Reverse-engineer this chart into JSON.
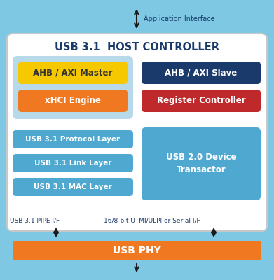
{
  "bg_outer": "#7ec8e3",
  "bg_inner": "#ffffff",
  "bg_left_group": "#b8d9ea",
  "title": "USB 3.1  HOST CONTROLLER",
  "title_color": "#1a3a6b",
  "ahb_master_color": "#f5c800",
  "ahb_master_text": "AHB / AXI Master",
  "ahb_master_text_color": "#333333",
  "xhci_color": "#f07820",
  "xhci_text": "xHCI Engine",
  "ahb_slave_color": "#1a3a6b",
  "ahb_slave_text": "AHB / AXI Slave",
  "reg_ctrl_color": "#c0292b",
  "reg_ctrl_text": "Register Controller",
  "proto_color": "#4fa8d0",
  "proto_text": "USB 3.1 Protocol Layer",
  "link_color": "#4fa8d0",
  "link_text": "USB 3.1 Link Layer",
  "mac_color": "#4fa8d0",
  "mac_text": "USB 3.1 MAC Layer",
  "usb20_color": "#4fa8d0",
  "usb20_text": "USB 2.0 Device\nTransactor",
  "phy_color": "#f07820",
  "phy_text": "USB PHY",
  "app_iface_text": "Application Interface",
  "pipe_text": "USB 3.1 PIPE I/F",
  "serial_text": "16/8-bit UTMI/ULPI or Serial I/F",
  "text_white": "#ffffff",
  "text_dark": "#1a3a6b",
  "arrow_color": "#1a1a1a"
}
